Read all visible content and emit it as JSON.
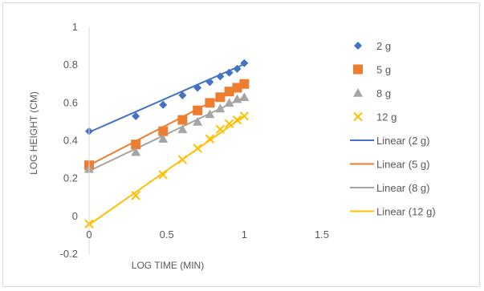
{
  "chart_data": {
    "type": "scatter",
    "title": "",
    "xlabel": "LOG TIME (MIN)",
    "ylabel": "LOG HEIGHT (CM)",
    "xlim": [
      0,
      1.5
    ],
    "ylim": [
      -0.2,
      1
    ],
    "x_ticks": [
      "0",
      "0.5",
      "1",
      "1.5"
    ],
    "y_ticks": [
      "-0.2",
      "0",
      "0.2",
      "0.4",
      "0.6",
      "0.8",
      "1"
    ],
    "grid": false,
    "legend_position": "right",
    "series": [
      {
        "name": "2 g",
        "marker": "diamond",
        "color": "#4472C4",
        "x": [
          0,
          0.301,
          0.477,
          0.602,
          0.699,
          0.778,
          0.845,
          0.903,
          0.954,
          1.0
        ],
        "y": [
          0.45,
          0.53,
          0.59,
          0.64,
          0.68,
          0.71,
          0.74,
          0.76,
          0.78,
          0.81
        ]
      },
      {
        "name": "5 g",
        "marker": "square",
        "color": "#ED7D31",
        "x": [
          0,
          0.301,
          0.477,
          0.602,
          0.699,
          0.778,
          0.845,
          0.903,
          0.954,
          1.0
        ],
        "y": [
          0.27,
          0.38,
          0.45,
          0.51,
          0.56,
          0.6,
          0.63,
          0.66,
          0.68,
          0.7
        ]
      },
      {
        "name": "8 g",
        "marker": "triangle",
        "color": "#A5A5A5",
        "x": [
          0,
          0.301,
          0.477,
          0.602,
          0.699,
          0.778,
          0.845,
          0.903,
          0.954,
          1.0
        ],
        "y": [
          0.25,
          0.34,
          0.41,
          0.46,
          0.5,
          0.54,
          0.57,
          0.6,
          0.62,
          0.63
        ]
      },
      {
        "name": "12 g",
        "marker": "x",
        "color": "#FFC000",
        "x": [
          0,
          0.301,
          0.477,
          0.602,
          0.699,
          0.778,
          0.845,
          0.903,
          0.954,
          1.0
        ],
        "y": [
          -0.04,
          0.11,
          0.22,
          0.3,
          0.36,
          0.41,
          0.46,
          0.49,
          0.51,
          0.53
        ]
      }
    ],
    "trendlines": [
      {
        "name": "Linear (2 g)",
        "color": "#4472C4",
        "x": [
          0,
          1.0
        ],
        "y": [
          0.445,
          0.805
        ]
      },
      {
        "name": "Linear (5 g)",
        "color": "#ED7D31",
        "x": [
          0,
          1.0
        ],
        "y": [
          0.27,
          0.695
        ]
      },
      {
        "name": "Linear (8 g)",
        "color": "#A5A5A5",
        "x": [
          0,
          1.0
        ],
        "y": [
          0.24,
          0.63
        ]
      },
      {
        "name": "Linear (12 g)",
        "color": "#FFC000",
        "x": [
          0,
          1.0
        ],
        "y": [
          -0.045,
          0.53
        ]
      }
    ]
  }
}
